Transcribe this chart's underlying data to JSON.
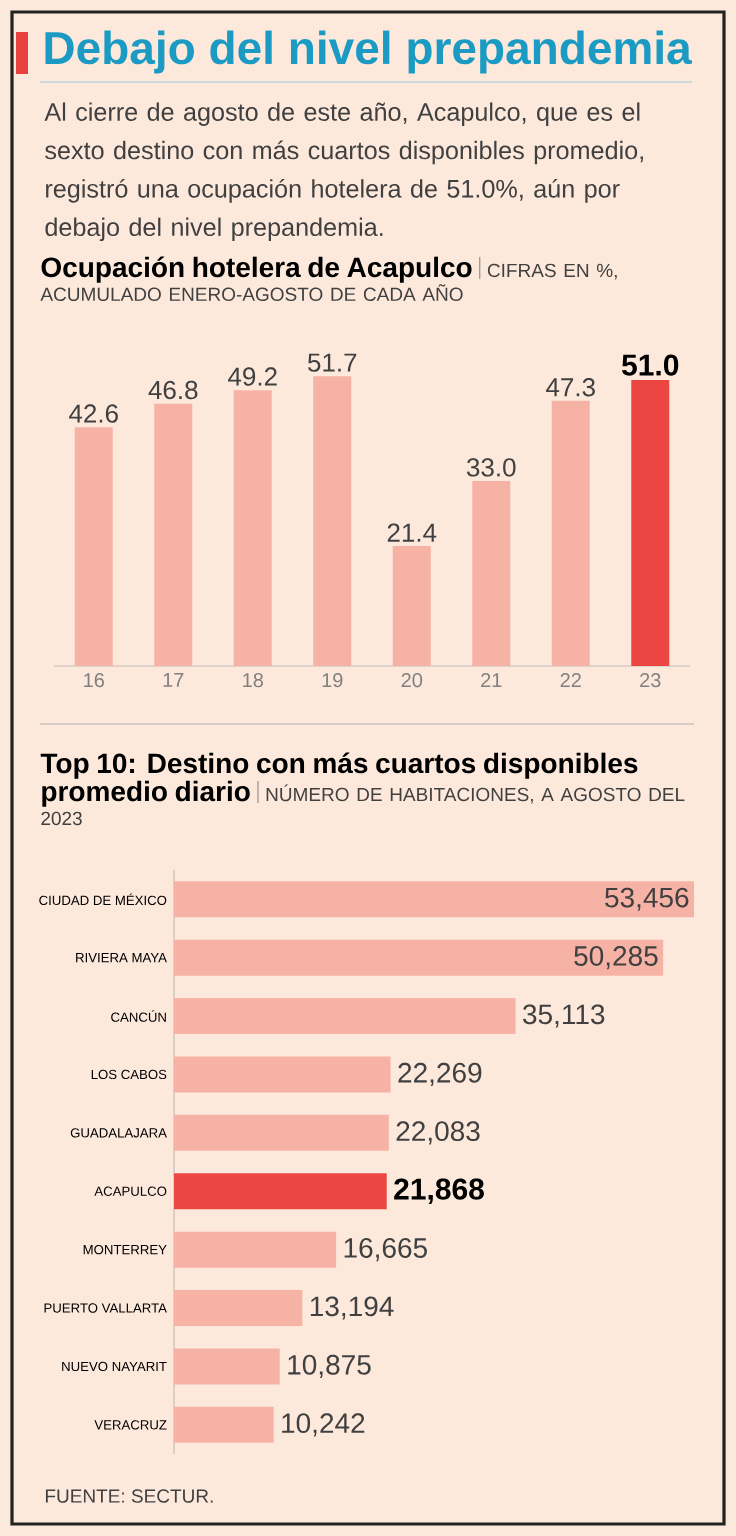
{
  "chart_data": [
    {
      "type": "bar",
      "title": "Ocupación hotelera de Acapulco",
      "subtitle": "CIFRAS EN %, ACUMULADO ENERO-AGOSTO DE CADA AÑO",
      "annotations": [
        "Debajo del nivel prepandemia",
        "Al cierre de agosto de este año, Acapulco, que es el sexto destino con más cuartos disponibles promedio, registró una ocupación hotelera de 51.0%, aún por debajo del nivel prepandemia."
      ],
      "categories": [
        "16",
        "17",
        "18",
        "19",
        "20",
        "21",
        "22",
        "23"
      ],
      "values": [
        42.6,
        46.8,
        49.2,
        51.7,
        21.4,
        33.0,
        47.3,
        51.0
      ],
      "colors": [
        "#f7b2a6",
        "#f7b2a6",
        "#f7b2a6",
        "#f7b2a6",
        "#f7b2a6",
        "#f7b2a6",
        "#f7b2a6",
        "#ec4642"
      ],
      "value_labels": [
        "42.6",
        "46.8",
        "49.2",
        "51.7",
        "21.4",
        "33.0",
        "47.3",
        "51.0"
      ]
    },
    {
      "type": "bar",
      "orientation": "horizontal",
      "title": "Top 10: Destino con más cuartos disponibles promedio diario",
      "subtitle": "NÚMERO DE HABITACIONES, A AGOSTO DEL 2023",
      "annotations": [
        "FUENTE: SECTUR."
      ],
      "categories": [
        "CIUDAD DE MÉXICO",
        "RIVIERA MAYA",
        "CANCÚN",
        "LOS CABOS",
        "GUADALAJARA",
        "ACAPULCO",
        "MONTERREY",
        "PUERTO VALLARTA",
        "NUEVO NAYARIT",
        "VERACRUZ"
      ],
      "values": [
        53456,
        50285,
        35113,
        22269,
        22083,
        21868,
        16665,
        13194,
        10875,
        10242
      ],
      "colors": [
        "#f7b2a6",
        "#f7b2a6",
        "#f7b2a6",
        "#f7b2a6",
        "#f7b2a6",
        "#ec4642",
        "#f7b2a6",
        "#f7b2a6",
        "#f7b2a6",
        "#f7b2a6"
      ],
      "value_labels": [
        "53,456",
        "50,285",
        "35,113",
        "22,269",
        "22,083",
        "21,868",
        "16,665",
        "13,194",
        "10,875",
        "10,242"
      ]
    }
  ]
}
